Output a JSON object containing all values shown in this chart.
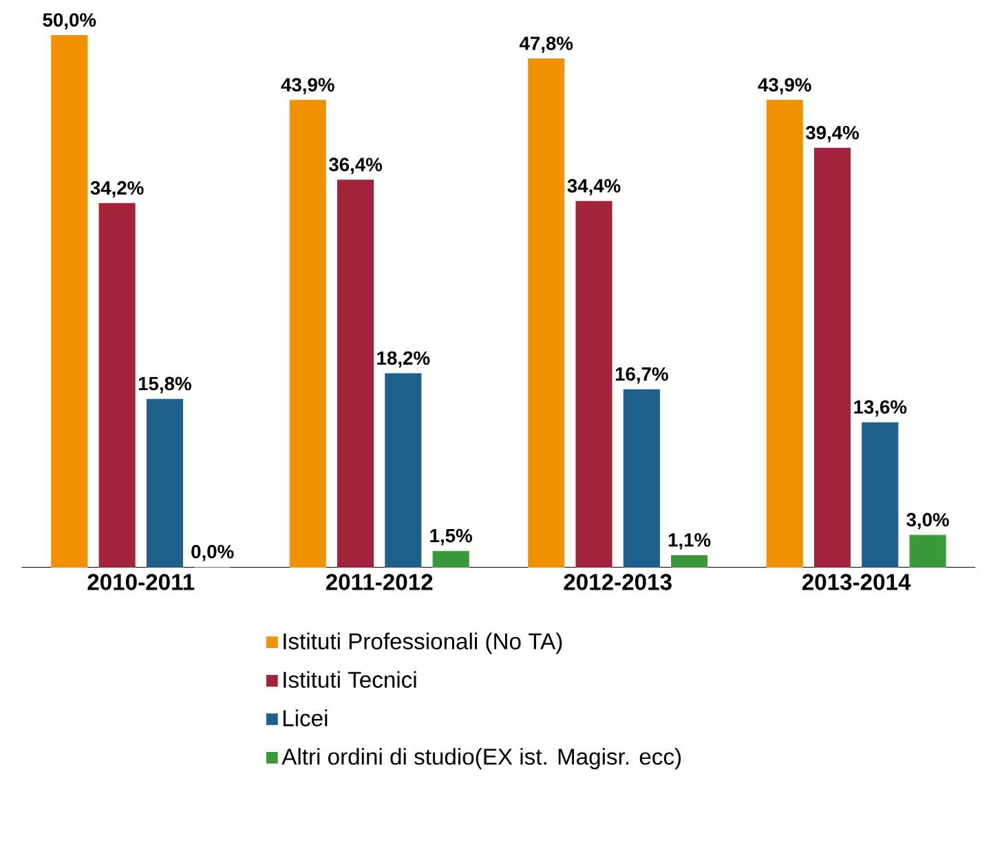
{
  "chart_data": {
    "type": "bar",
    "categories": [
      "2010-2011",
      "2011-2012",
      "2012-2013",
      "2013-2014"
    ],
    "series": [
      {
        "name": "Istituti Professionali (No TA)",
        "color": "#f39200",
        "values": [
          50.0,
          43.9,
          47.8,
          43.9
        ],
        "value_labels": [
          "50,0%",
          "43,9%",
          "47,8%",
          "43,9%"
        ]
      },
      {
        "name": "Istituti Tecnici",
        "color": "#a3243a",
        "values": [
          34.2,
          36.4,
          34.4,
          39.4
        ],
        "value_labels": [
          "34,2%",
          "36,4%",
          "34,4%",
          "39,4%"
        ]
      },
      {
        "name": "Licei",
        "color": "#1f5f8b",
        "values": [
          15.8,
          18.2,
          16.7,
          13.6
        ],
        "value_labels": [
          "15,8%",
          "18,2%",
          "16,7%",
          "13,6%"
        ]
      },
      {
        "name": "Altri ordini di studio(EX ist. Magisr. ecc)",
        "color": "#3a9a3a",
        "values": [
          0.0,
          1.5,
          1.1,
          3.0
        ],
        "value_labels": [
          "0,0%",
          "1,5%",
          "1,1%",
          "3,0%"
        ]
      }
    ],
    "legend": "bottom"
  }
}
